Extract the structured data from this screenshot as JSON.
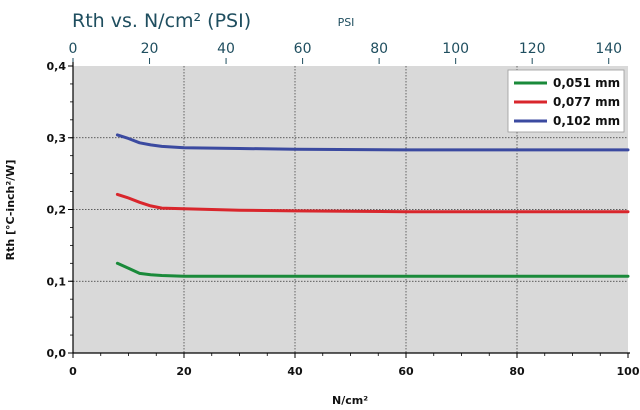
{
  "chart_data": {
    "type": "line",
    "title": "Rth vs. N/cm² (PSI)",
    "xlabel": "N/cm²",
    "ylabel": "Rth [°C-inch²/W]",
    "top_axis_label": "PSI",
    "xlim": [
      0,
      100
    ],
    "ylim": [
      0,
      0.4
    ],
    "top_xlim": [
      0,
      145.04
    ],
    "x_ticks": [
      "0",
      "20",
      "40",
      "60",
      "80",
      "100"
    ],
    "x_tick_values": [
      0,
      20,
      40,
      60,
      80,
      100
    ],
    "y_ticks": [
      "0,0",
      "0,1",
      "0,2",
      "0,3",
      "0,4"
    ],
    "y_tick_values": [
      0,
      0.1,
      0.2,
      0.3,
      0.4
    ],
    "top_ticks": [
      "0",
      "20",
      "40",
      "60",
      "80",
      "100",
      "120",
      "140"
    ],
    "top_tick_values": [
      0,
      20,
      40,
      60,
      80,
      100,
      120,
      140
    ],
    "grid": true,
    "legend_position": "top-right",
    "series": [
      {
        "name": "0,051 mm",
        "color": "#1a8a3a",
        "x": [
          8,
          10,
          12,
          14,
          16,
          20,
          30,
          40,
          60,
          80,
          100
        ],
        "y": [
          0.125,
          0.118,
          0.111,
          0.109,
          0.108,
          0.107,
          0.107,
          0.107,
          0.107,
          0.107,
          0.107
        ]
      },
      {
        "name": "0,077 mm",
        "color": "#d9262c",
        "x": [
          8,
          10,
          12,
          14,
          16,
          20,
          30,
          40,
          60,
          80,
          100
        ],
        "y": [
          0.221,
          0.216,
          0.21,
          0.205,
          0.202,
          0.201,
          0.199,
          0.198,
          0.197,
          0.197,
          0.197
        ]
      },
      {
        "name": "0,102 mm",
        "color": "#3b4aa0",
        "x": [
          8,
          10,
          12,
          14,
          16,
          20,
          30,
          40,
          60,
          80,
          100
        ],
        "y": [
          0.304,
          0.299,
          0.293,
          0.29,
          0.288,
          0.286,
          0.285,
          0.284,
          0.283,
          0.283,
          0.283
        ]
      }
    ]
  }
}
